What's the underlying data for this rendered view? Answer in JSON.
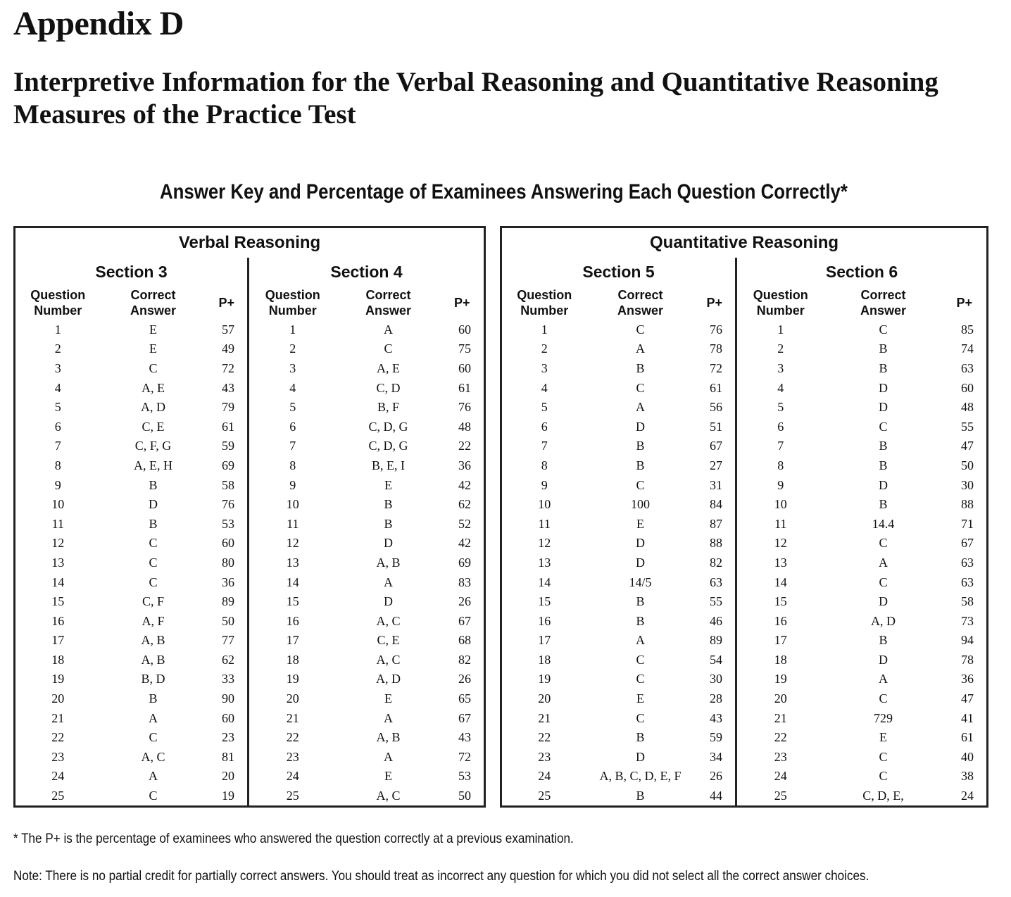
{
  "title": "Appendix D",
  "subtitle": "Interpretive Information for the Verbal Reasoning and Quantitative Reasoning Measures of the Practice Test",
  "table_title": "Answer Key and Percentage of Examinees Answering Each Question Correctly*",
  "column_headers": {
    "question": "Question Number",
    "answer": "Correct Answer",
    "pplus": "P+"
  },
  "measures": [
    {
      "name": "Verbal Reasoning",
      "sections": [
        {
          "name": "Section 3",
          "rows": [
            [
              "1",
              "E",
              "57"
            ],
            [
              "2",
              "E",
              "49"
            ],
            [
              "3",
              "C",
              "72"
            ],
            [
              "4",
              "A, E",
              "43"
            ],
            [
              "5",
              "A, D",
              "79"
            ],
            [
              "6",
              "C, E",
              "61"
            ],
            [
              "7",
              "C, F, G",
              "59"
            ],
            [
              "8",
              "A, E, H",
              "69"
            ],
            [
              "9",
              "B",
              "58"
            ],
            [
              "10",
              "D",
              "76"
            ],
            [
              "11",
              "B",
              "53"
            ],
            [
              "12",
              "C",
              "60"
            ],
            [
              "13",
              "C",
              "80"
            ],
            [
              "14",
              "C",
              "36"
            ],
            [
              "15",
              "C, F",
              "89"
            ],
            [
              "16",
              "A, F",
              "50"
            ],
            [
              "17",
              "A, B",
              "77"
            ],
            [
              "18",
              "A, B",
              "62"
            ],
            [
              "19",
              "B, D",
              "33"
            ],
            [
              "20",
              "B",
              "90"
            ],
            [
              "21",
              "A",
              "60"
            ],
            [
              "22",
              "C",
              "23"
            ],
            [
              "23",
              "A, C",
              "81"
            ],
            [
              "24",
              "A",
              "20"
            ],
            [
              "25",
              "C",
              "19"
            ]
          ]
        },
        {
          "name": "Section 4",
          "rows": [
            [
              "1",
              "A",
              "60"
            ],
            [
              "2",
              "C",
              "75"
            ],
            [
              "3",
              "A, E",
              "60"
            ],
            [
              "4",
              "C, D",
              "61"
            ],
            [
              "5",
              "B, F",
              "76"
            ],
            [
              "6",
              "C, D, G",
              "48"
            ],
            [
              "7",
              "C, D, G",
              "22"
            ],
            [
              "8",
              "B, E, I",
              "36"
            ],
            [
              "9",
              "E",
              "42"
            ],
            [
              "10",
              "B",
              "62"
            ],
            [
              "11",
              "B",
              "52"
            ],
            [
              "12",
              "D",
              "42"
            ],
            [
              "13",
              "A, B",
              "69"
            ],
            [
              "14",
              "A",
              "83"
            ],
            [
              "15",
              "D",
              "26"
            ],
            [
              "16",
              "A, C",
              "67"
            ],
            [
              "17",
              "C, E",
              "68"
            ],
            [
              "18",
              "A, C",
              "82"
            ],
            [
              "19",
              "A, D",
              "26"
            ],
            [
              "20",
              "E",
              "65"
            ],
            [
              "21",
              "A",
              "67"
            ],
            [
              "22",
              "A, B",
              "43"
            ],
            [
              "23",
              "A",
              "72"
            ],
            [
              "24",
              "E",
              "53"
            ],
            [
              "25",
              "A, C",
              "50"
            ]
          ]
        }
      ]
    },
    {
      "name": "Quantitative Reasoning",
      "sections": [
        {
          "name": "Section 5",
          "rows": [
            [
              "1",
              "C",
              "76"
            ],
            [
              "2",
              "A",
              "78"
            ],
            [
              "3",
              "B",
              "72"
            ],
            [
              "4",
              "C",
              "61"
            ],
            [
              "5",
              "A",
              "56"
            ],
            [
              "6",
              "D",
              "51"
            ],
            [
              "7",
              "B",
              "67"
            ],
            [
              "8",
              "B",
              "27"
            ],
            [
              "9",
              "C",
              "31"
            ],
            [
              "10",
              "100",
              "84"
            ],
            [
              "11",
              "E",
              "87"
            ],
            [
              "12",
              "D",
              "88"
            ],
            [
              "13",
              "D",
              "82"
            ],
            [
              "14",
              "14/5",
              "63"
            ],
            [
              "15",
              "B",
              "55"
            ],
            [
              "16",
              "B",
              "46"
            ],
            [
              "17",
              "A",
              "89"
            ],
            [
              "18",
              "C",
              "54"
            ],
            [
              "19",
              "C",
              "30"
            ],
            [
              "20",
              "E",
              "28"
            ],
            [
              "21",
              "C",
              "43"
            ],
            [
              "22",
              "B",
              "59"
            ],
            [
              "23",
              "D",
              "34"
            ],
            [
              "24",
              "A, B, C, D, E, F",
              "26"
            ],
            [
              "25",
              "B",
              "44"
            ]
          ]
        },
        {
          "name": "Section 6",
          "rows": [
            [
              "1",
              "C",
              "85"
            ],
            [
              "2",
              "B",
              "74"
            ],
            [
              "3",
              "B",
              "63"
            ],
            [
              "4",
              "D",
              "60"
            ],
            [
              "5",
              "D",
              "48"
            ],
            [
              "6",
              "C",
              "55"
            ],
            [
              "7",
              "B",
              "47"
            ],
            [
              "8",
              "B",
              "50"
            ],
            [
              "9",
              "D",
              "30"
            ],
            [
              "10",
              "B",
              "88"
            ],
            [
              "11",
              "14.4",
              "71"
            ],
            [
              "12",
              "C",
              "67"
            ],
            [
              "13",
              "A",
              "63"
            ],
            [
              "14",
              "C",
              "63"
            ],
            [
              "15",
              "D",
              "58"
            ],
            [
              "16",
              "A, D",
              "73"
            ],
            [
              "17",
              "B",
              "94"
            ],
            [
              "18",
              "D",
              "78"
            ],
            [
              "19",
              "A",
              "36"
            ],
            [
              "20",
              "C",
              "47"
            ],
            [
              "21",
              "729",
              "41"
            ],
            [
              "22",
              "E",
              "61"
            ],
            [
              "23",
              "C",
              "40"
            ],
            [
              "24",
              "C",
              "38"
            ],
            [
              "25",
              "C, D, E,",
              "24"
            ]
          ]
        }
      ]
    }
  ],
  "footnote": "* The P+ is the percentage of examinees who answered the question correctly at a previous examination.",
  "note": "Note: There is no partial credit for partially correct answers. You should treat as incorrect any question for which you did not select all the correct answer choices."
}
